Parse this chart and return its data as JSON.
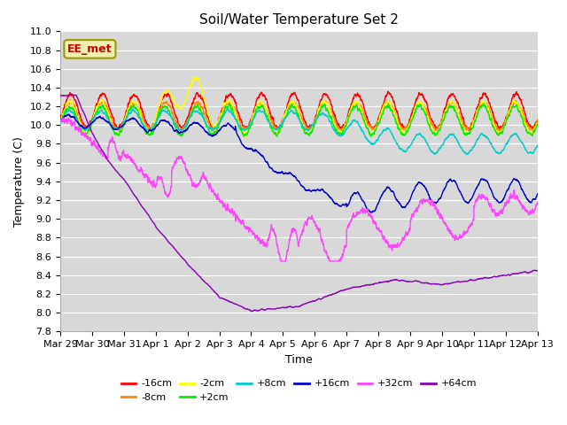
{
  "title": "Soil/Water Temperature Set 2",
  "xlabel": "Time",
  "ylabel": "Temperature (C)",
  "ylim": [
    7.8,
    10.9
  ],
  "xlim_days": 15,
  "background_color": "#ffffff",
  "plot_bg_color": "#d8d8d8",
  "grid_color": "#ffffff",
  "annotation_text": "EE_met",
  "annotation_color": "#cc0000",
  "annotation_bg": "#f0f0b0",
  "annotation_border": "#999900",
  "series": [
    {
      "label": "-16cm",
      "color": "#ff0000"
    },
    {
      "label": "-8cm",
      "color": "#ff8800"
    },
    {
      "label": "-2cm",
      "color": "#ffff00"
    },
    {
      "label": "+2cm",
      "color": "#00ee00"
    },
    {
      "label": "+8cm",
      "color": "#00cccc"
    },
    {
      "label": "+16cm",
      "color": "#0000cc"
    },
    {
      "label": "+32cm",
      "color": "#ff44ff"
    },
    {
      "label": "+64cm",
      "color": "#8800bb"
    }
  ],
  "n_points": 3360,
  "tick_labels": [
    "Mar 29",
    "Mar 30",
    "Mar 31",
    "Apr 1",
    "Apr 2",
    "Apr 3",
    "Apr 4",
    "Apr 5",
    "Apr 6",
    "Apr 7",
    "Apr 8",
    "Apr 9",
    "Apr 10",
    "Apr 11",
    "Apr 12",
    "Apr 13"
  ],
  "tick_positions": [
    0,
    1,
    2,
    3,
    4,
    5,
    6,
    7,
    8,
    9,
    10,
    11,
    12,
    13,
    14,
    15
  ]
}
